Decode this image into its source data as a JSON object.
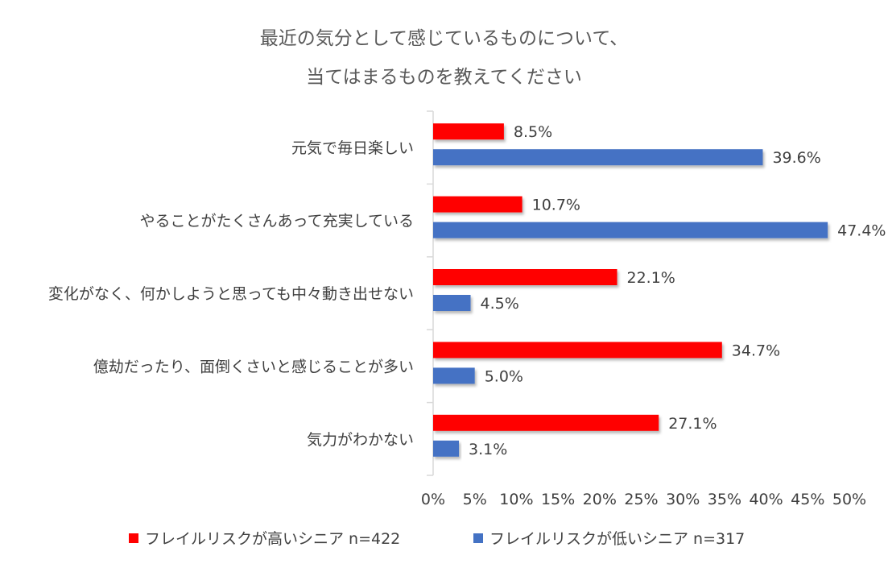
{
  "chart_data": {
    "type": "bar",
    "title": "最近の気分として感じているものについて、",
    "subtitle": "当てはまるものを教えてください",
    "categories": [
      "元気で毎日楽しい",
      "やることがたくさんあって充実している",
      "変化がなく、何かしようと思っても中々動き出せない",
      "億劫だったり、面倒くさいと感じることが多い",
      "気力がわかない"
    ],
    "series": [
      {
        "name": "フレイルリスクが高いシニア n=422",
        "color": "#FF0000",
        "values": [
          8.5,
          10.7,
          22.1,
          34.7,
          27.1
        ],
        "labels": [
          "8.5%",
          "10.7%",
          "22.1%",
          "34.7%",
          "27.1%"
        ]
      },
      {
        "name": "フレイルリスクが低いシニア n=317",
        "color": "#4472C4",
        "values": [
          39.6,
          47.4,
          4.5,
          5.0,
          3.1
        ],
        "labels": [
          "39.6%",
          "47.4%",
          "4.5%",
          "5.0%",
          "3.1%"
        ]
      }
    ],
    "xlim": [
      0,
      50
    ],
    "xticks": [
      0,
      5,
      10,
      15,
      20,
      25,
      30,
      35,
      40,
      45,
      50
    ],
    "xtick_labels": [
      "0%",
      "5%",
      "10%",
      "15%",
      "20%",
      "25%",
      "30%",
      "35%",
      "40%",
      "45%",
      "50%"
    ],
    "orientation": "horizontal",
    "grid": false,
    "legend_position": "bottom"
  }
}
